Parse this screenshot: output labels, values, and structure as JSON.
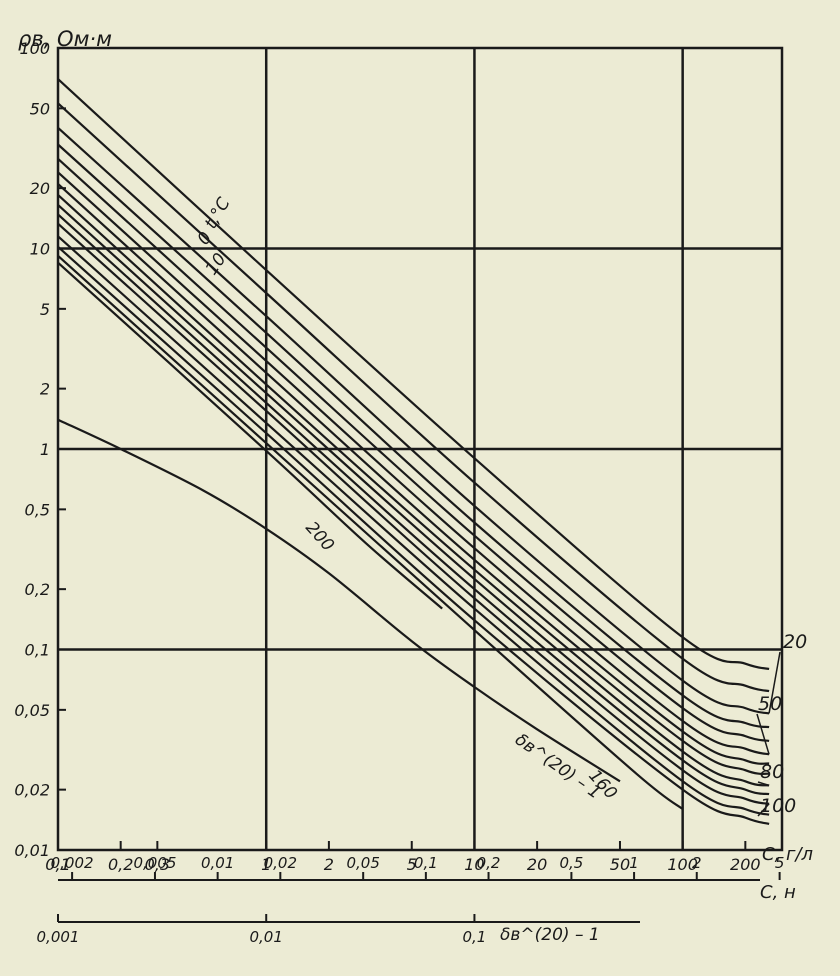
{
  "chart_data": {
    "type": "line",
    "title": "",
    "ylabel": "ρв, Ом·м",
    "y_scale": "log",
    "ylim": [
      0.01,
      100
    ],
    "y_ticks": [
      "0,01",
      "0,02",
      "0,05",
      "0,1",
      "0,2",
      "0,5",
      "1",
      "2",
      "5",
      "10",
      "20",
      "50",
      "100"
    ],
    "x_scale": "log",
    "xlabel": "С, г/л",
    "xlim": [
      0.1,
      300
    ],
    "x_ticks": [
      "0,1",
      "0,2",
      "0,3",
      "1",
      "2",
      "5",
      "10",
      "20",
      "50",
      "100",
      "200"
    ],
    "axis2": {
      "label": "С, н",
      "ticks": [
        "0,002",
        "0,005",
        "0,01",
        "0,02",
        "0,05",
        "0,1",
        "0,2",
        "0,5",
        "1",
        "2",
        "5"
      ]
    },
    "axis3": {
      "label": "δв^(20) – 1",
      "ticks": [
        "0,001",
        "0,01",
        "0,1"
      ]
    },
    "curve_label_header": "t,°С",
    "grid": true,
    "series": [
      {
        "name": "0",
        "x": [
          0.1,
          1,
          10,
          100,
          200,
          260
        ],
        "y": [
          70,
          7.8,
          0.9,
          0.115,
          0.085,
          0.08
        ]
      },
      {
        "name": "10",
        "x": [
          0.1,
          1,
          10,
          100,
          200,
          260
        ],
        "y": [
          53,
          6,
          0.68,
          0.09,
          0.066,
          0.062
        ]
      },
      {
        "name": "20",
        "x": [
          0.1,
          1,
          10,
          100,
          200,
          260
        ],
        "y": [
          40,
          4.6,
          0.52,
          0.07,
          0.051,
          0.048
        ]
      },
      {
        "name": "",
        "x": [
          0.1,
          1,
          10,
          100,
          200,
          260
        ],
        "y": [
          33,
          3.8,
          0.43,
          0.059,
          0.043,
          0.041
        ]
      },
      {
        "name": "",
        "x": [
          0.1,
          1,
          10,
          100,
          200,
          260
        ],
        "y": [
          28,
          3.2,
          0.37,
          0.051,
          0.037,
          0.035
        ]
      },
      {
        "name": "50",
        "x": [
          0.1,
          1,
          10,
          100,
          200,
          260
        ],
        "y": [
          24,
          2.75,
          0.32,
          0.044,
          0.032,
          0.03
        ]
      },
      {
        "name": "",
        "x": [
          0.1,
          1,
          10,
          100,
          200,
          260
        ],
        "y": [
          21,
          2.4,
          0.28,
          0.039,
          0.028,
          0.027
        ]
      },
      {
        "name": "",
        "x": [
          0.1,
          1,
          10,
          100,
          200,
          260
        ],
        "y": [
          18.5,
          2.1,
          0.25,
          0.035,
          0.025,
          0.024
        ]
      },
      {
        "name": "80",
        "x": [
          0.1,
          1,
          10,
          100,
          200,
          260
        ],
        "y": [
          16.5,
          1.9,
          0.225,
          0.031,
          0.022,
          0.021
        ]
      },
      {
        "name": "",
        "x": [
          0.1,
          1,
          10,
          100,
          200,
          260
        ],
        "y": [
          14.8,
          1.7,
          0.2,
          0.028,
          0.02,
          0.019
        ]
      },
      {
        "name": "100",
        "x": [
          0.1,
          1,
          10,
          100,
          200,
          260
        ],
        "y": [
          13.3,
          1.55,
          0.18,
          0.025,
          0.018,
          0.017
        ]
      },
      {
        "name": "",
        "x": [
          0.1,
          1,
          10,
          100,
          200,
          260
        ],
        "y": [
          11.5,
          1.35,
          0.16,
          0.022,
          0.016,
          0.015
        ]
      },
      {
        "name": "",
        "x": [
          0.1,
          1,
          10,
          100,
          200,
          260
        ],
        "y": [
          10.2,
          1.2,
          0.14,
          0.02,
          0.0145,
          0.0135
        ]
      },
      {
        "name": "160",
        "x": [
          0.1,
          1,
          10,
          60,
          100
        ],
        "y": [
          9.2,
          1.07,
          0.125,
          0.024,
          0.016
        ]
      },
      {
        "name": "200",
        "x": [
          0.1,
          1,
          3,
          7
        ],
        "y": [
          8.5,
          0.98,
          0.34,
          0.16
        ]
      },
      {
        "name": "δв^(20) – 1",
        "x": [
          0.1,
          0.2,
          0.5,
          1,
          2,
          5,
          10,
          20,
          50
        ],
        "y": [
          1.4,
          1.0,
          0.62,
          0.4,
          0.24,
          0.11,
          0.065,
          0.04,
          0.022
        ]
      }
    ]
  }
}
